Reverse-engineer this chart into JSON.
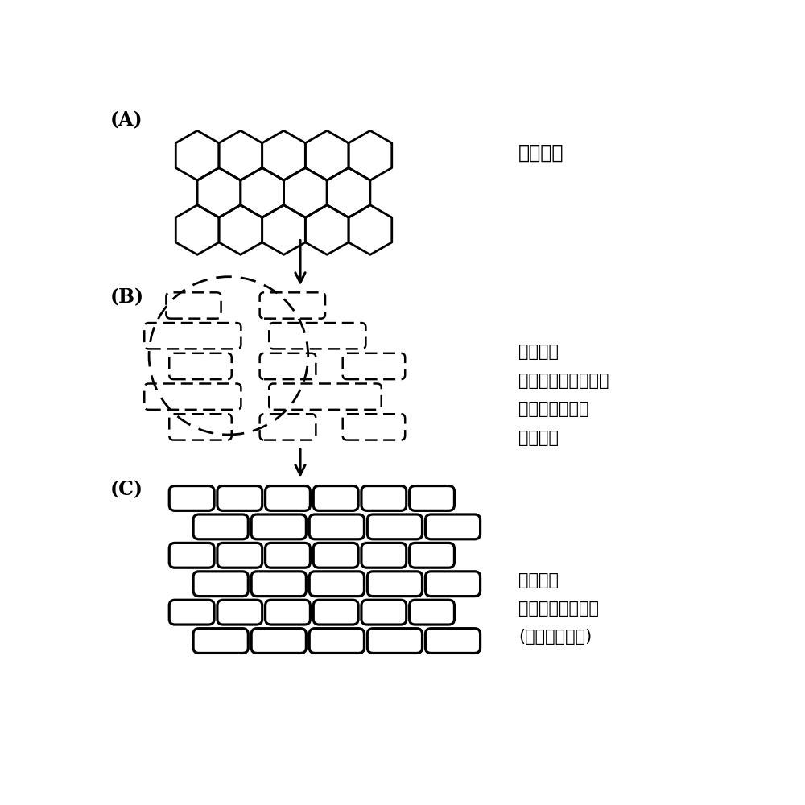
{
  "bg_color": "#ffffff",
  "label_A": "(A)",
  "label_B": "(B)",
  "label_C": "(C)",
  "text_A": "各向同性",
  "text_B1": "各向异性",
  "text_B2": "因变形引起的粗大化",
  "text_B3": "结晶间的磁耦合",
  "text_B4": "内部应力",
  "text_C1": "各向异性",
  "text_C2": "反转单位的微细化",
  "text_C3": "(磁分开性提高)"
}
